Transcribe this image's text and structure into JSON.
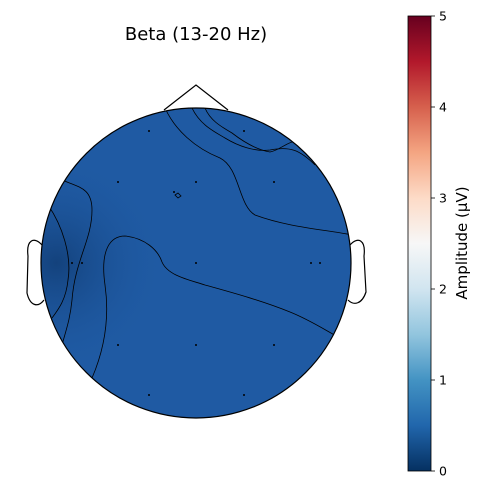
{
  "chart_data": {
    "type": "heatmap",
    "subtype": "topographic-scalp-map",
    "title": "Beta (13-20 Hz)",
    "colorbar": {
      "label": "Amplitude (μV)",
      "colormap": "RdBu_r",
      "range": [
        0,
        5
      ],
      "ticks": [
        "0",
        "1",
        "2",
        "3",
        "4",
        "5"
      ],
      "colors": [
        "#053061",
        "#2166ac",
        "#4393c3",
        "#92c5de",
        "#d1e5f0",
        "#f7f7f7",
        "#fddbc7",
        "#f4a582",
        "#d6604d",
        "#b2182b",
        "#67001f"
      ]
    },
    "map_fill_color": "#1f5aa3",
    "contour_lines": true,
    "outline_color": "#000000",
    "sensor_count": 19
  }
}
